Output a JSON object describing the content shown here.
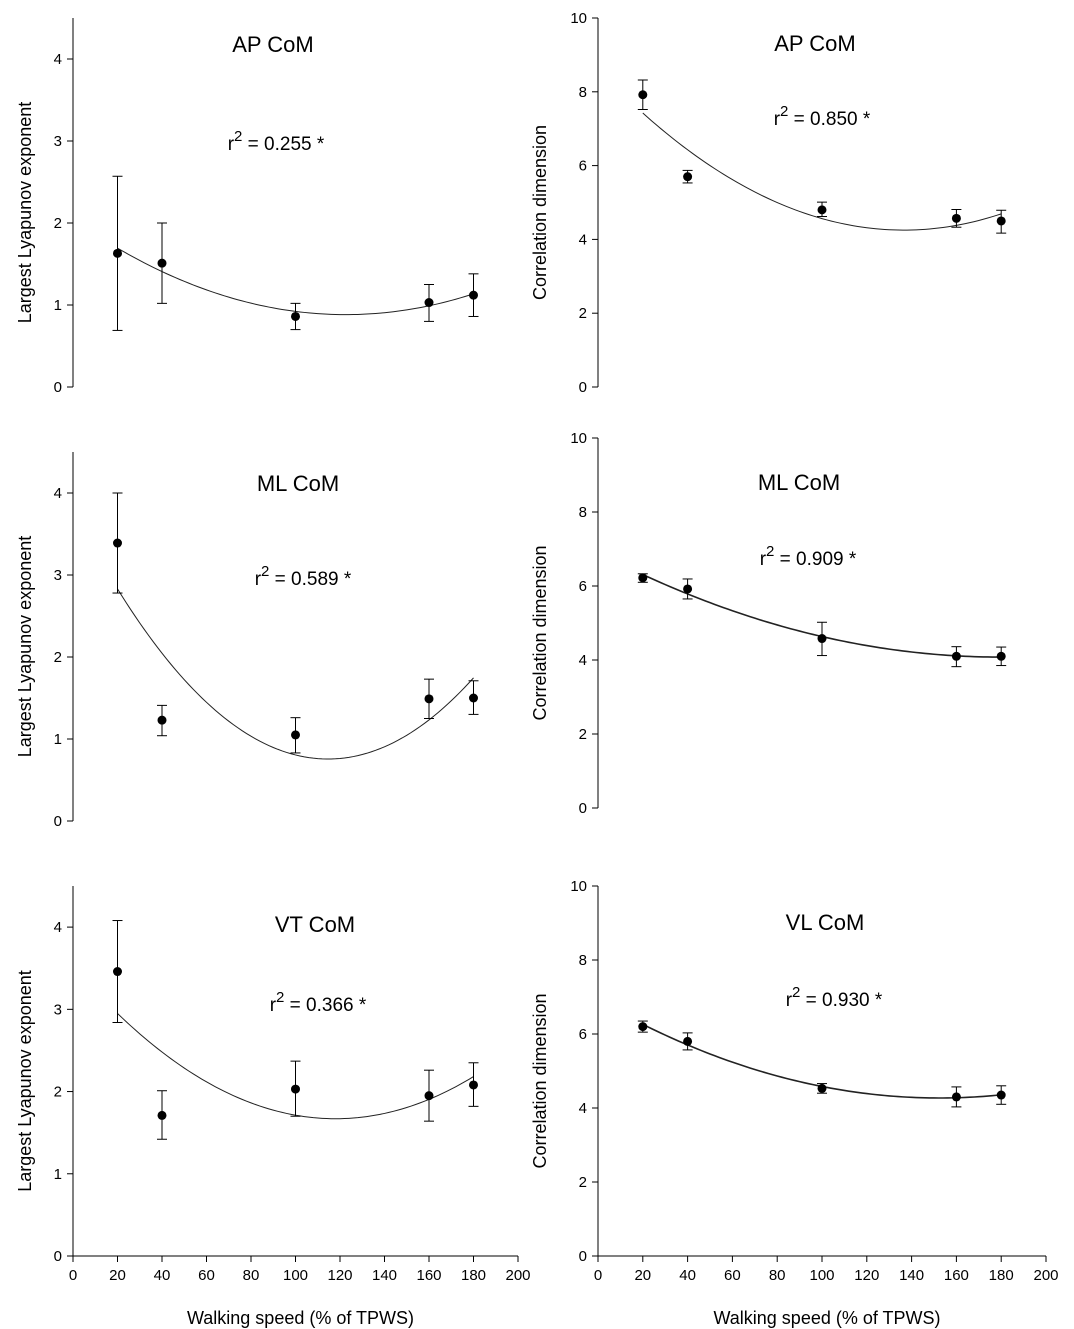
{
  "figure": {
    "xlabel_bottom": "Walking speed (% of TPWS)"
  },
  "chart_data": [
    {
      "type": "scatter",
      "title": "AP CoM",
      "annotation": "r² = 0.255 *",
      "annotation_base": "r",
      "annotation_sup": "2",
      "annotation_rest": " = 0.255 *",
      "ylabel": "Largest Lyapunov exponent",
      "xlabel": "",
      "xlim": [
        0,
        200
      ],
      "ylim": [
        0,
        4.5
      ],
      "yticks": [
        0,
        1,
        2,
        3,
        4
      ],
      "xticks": [],
      "x": [
        20,
        40,
        100,
        160,
        180
      ],
      "y": [
        1.63,
        1.51,
        0.86,
        1.03,
        1.12
      ],
      "err_low": [
        0.69,
        1.02,
        0.7,
        0.8,
        0.86
      ],
      "err_high": [
        2.57,
        2.0,
        1.02,
        1.25,
        1.38
      ],
      "fit_curve": true,
      "grid": false
    },
    {
      "type": "scatter",
      "title": "AP CoM",
      "annotation": "r² = 0.850 *",
      "annotation_base": "r",
      "annotation_sup": "2",
      "annotation_rest": " = 0.850 *",
      "ylabel": "Correlation dimension",
      "xlabel": "",
      "xlim": [
        0,
        200
      ],
      "ylim": [
        0,
        10
      ],
      "yticks": [
        0,
        2,
        4,
        6,
        8,
        10
      ],
      "xticks": [],
      "x": [
        20,
        40,
        100,
        160,
        180
      ],
      "y": [
        7.92,
        5.7,
        4.8,
        4.57,
        4.5
      ],
      "err_low": [
        7.52,
        5.53,
        4.62,
        4.33,
        4.17
      ],
      "err_high": [
        8.32,
        5.87,
        5.01,
        4.81,
        4.79
      ],
      "fit_curve": true,
      "grid": false
    },
    {
      "type": "scatter",
      "title": "ML CoM",
      "annotation": "r² = 0.589 *",
      "annotation_base": "r",
      "annotation_sup": "2",
      "annotation_rest": " = 0.589 *",
      "ylabel": "Largest Lyapunov exponent",
      "xlabel": "",
      "xlim": [
        0,
        200
      ],
      "ylim": [
        0,
        4.5
      ],
      "yticks": [
        0,
        1,
        2,
        3,
        4
      ],
      "xticks": [],
      "x": [
        20,
        40,
        100,
        160,
        180
      ],
      "y": [
        3.39,
        1.23,
        1.05,
        1.49,
        1.5
      ],
      "err_low": [
        2.78,
        1.04,
        0.83,
        1.25,
        1.3
      ],
      "err_high": [
        4.0,
        1.41,
        1.26,
        1.73,
        1.71
      ],
      "fit_curve": true,
      "grid": false
    },
    {
      "type": "scatter",
      "title": "ML CoM",
      "annotation": "r² = 0.909 *",
      "annotation_base": "r",
      "annotation_sup": "2",
      "annotation_rest": " = 0.909 *",
      "ylabel": "Correlation dimension",
      "xlabel": "",
      "xlim": [
        0,
        200
      ],
      "ylim": [
        0,
        10
      ],
      "yticks": [
        0,
        2,
        4,
        6,
        8,
        10
      ],
      "xticks": [],
      "x": [
        20,
        40,
        100,
        160,
        180
      ],
      "y": [
        6.22,
        5.92,
        4.58,
        4.1,
        4.1
      ],
      "err_low": [
        6.1,
        5.65,
        4.12,
        3.82,
        3.85
      ],
      "err_high": [
        6.33,
        6.19,
        5.02,
        4.36,
        4.35
      ],
      "fit_curve": true,
      "grid": false
    },
    {
      "type": "scatter",
      "title": "VT CoM",
      "annotation": "r² = 0.366 *",
      "annotation_base": "r",
      "annotation_sup": "2",
      "annotation_rest": " = 0.366 *",
      "ylabel": "Largest Lyapunov exponent",
      "xlabel": "Walking speed (% of TPWS)",
      "xlim": [
        0,
        200
      ],
      "ylim": [
        0,
        4.5
      ],
      "yticks": [
        0,
        1,
        2,
        3,
        4
      ],
      "xticks": [
        0,
        20,
        40,
        60,
        80,
        100,
        120,
        140,
        160,
        180,
        200
      ],
      "x": [
        20,
        40,
        100,
        160,
        180
      ],
      "y": [
        3.46,
        1.71,
        2.03,
        1.95,
        2.08
      ],
      "err_low": [
        2.84,
        1.42,
        1.7,
        1.64,
        1.82
      ],
      "err_high": [
        4.08,
        2.01,
        2.37,
        2.26,
        2.35
      ],
      "fit_curve": true,
      "grid": false
    },
    {
      "type": "scatter",
      "title": "VL CoM",
      "annotation": "r² = 0.930 *",
      "annotation_base": "r",
      "annotation_sup": "2",
      "annotation_rest": " = 0.930 *",
      "ylabel": "Correlation dimension",
      "xlabel": "Walking speed (% of TPWS)",
      "xlim": [
        0,
        200
      ],
      "ylim": [
        0,
        10
      ],
      "yticks": [
        0,
        2,
        4,
        6,
        8,
        10
      ],
      "xticks": [
        0,
        20,
        40,
        60,
        80,
        100,
        120,
        140,
        160,
        180,
        200
      ],
      "x": [
        20,
        40,
        100,
        160,
        180
      ],
      "y": [
        6.2,
        5.8,
        4.53,
        4.3,
        4.35
      ],
      "err_low": [
        6.05,
        5.57,
        4.4,
        4.03,
        4.1
      ],
      "err_high": [
        6.35,
        6.03,
        4.66,
        4.57,
        4.6
      ],
      "fit_curve": true,
      "grid": false
    }
  ]
}
